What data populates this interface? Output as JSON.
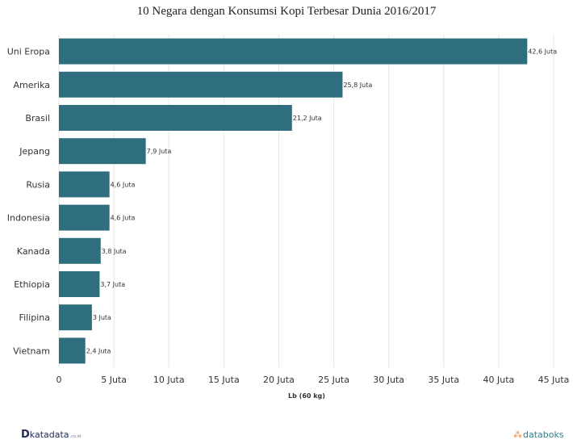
{
  "chart_data": {
    "type": "bar",
    "orientation": "horizontal",
    "title": "10 Negara dengan Konsumsi Kopi Terbesar Dunia 2016/2017",
    "xlabel": "Lb (60 kg)",
    "ylabel": "",
    "categories": [
      "Uni Eropa",
      "Amerika",
      "Brasil",
      "Jepang",
      "Rusia",
      "Indonesia",
      "Kanada",
      "Ethiopia",
      "Filipina",
      "Vietnam"
    ],
    "values": [
      42.6,
      25.8,
      21.2,
      7.9,
      4.6,
      4.6,
      3.8,
      3.7,
      3,
      2.4
    ],
    "data_labels": [
      "42,6 Juta",
      "25,8 Juta",
      "21,2 Juta",
      "7,9 Juta",
      "4,6 Juta",
      "4,6 Juta",
      "3,8 Juta",
      "3,7 Juta",
      "3 Juta",
      "2,4 Juta"
    ],
    "xlim": [
      0,
      45
    ],
    "xticks": [
      0,
      5,
      10,
      15,
      20,
      25,
      30,
      35,
      40,
      45
    ],
    "xtick_labels": [
      "0",
      "5 Juta",
      "10 Juta",
      "15 Juta",
      "20 Juta",
      "25 Juta",
      "30 Juta",
      "35 Juta",
      "40 Juta",
      "45 Juta"
    ],
    "grid": true,
    "bar_color": "#2e6e7e"
  },
  "footer": {
    "left_logo_mark": "D",
    "left_logo_name": "katadata",
    "left_logo_suffix": ".co.id",
    "right_logo_name": "databoks"
  }
}
